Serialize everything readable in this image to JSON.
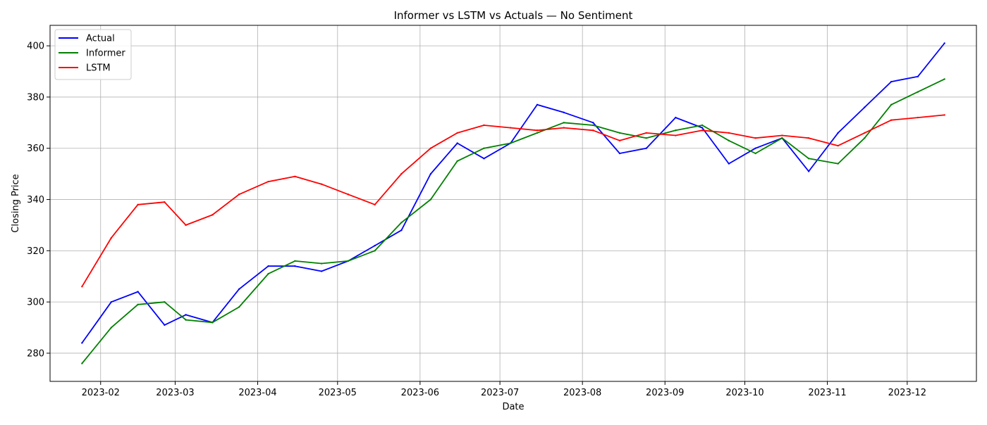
{
  "chart_data": {
    "type": "line",
    "title": "Informer vs LSTM vs Actuals — No Sentiment",
    "xlabel": "Date",
    "ylabel": "Closing Price",
    "x_tick_labels": [
      "2023-02",
      "2023-03",
      "2023-04",
      "2023-05",
      "2023-06",
      "2023-07",
      "2023-08",
      "2023-09",
      "2023-10",
      "2023-11",
      "2023-12"
    ],
    "x_tick_dates": [
      "2023-02-01",
      "2023-03-01",
      "2023-04-01",
      "2023-05-01",
      "2023-06-01",
      "2023-07-01",
      "2023-08-01",
      "2023-09-01",
      "2023-10-01",
      "2023-11-01",
      "2023-12-01"
    ],
    "xlim": [
      "2023-01-13",
      "2023-12-27"
    ],
    "y_ticks": [
      280,
      300,
      320,
      340,
      360,
      380,
      400
    ],
    "ylim": [
      269,
      408
    ],
    "grid": true,
    "legend_position": "top-left",
    "x": [
      "2023-01-25",
      "2023-02-05",
      "2023-02-15",
      "2023-02-25",
      "2023-03-05",
      "2023-03-15",
      "2023-03-25",
      "2023-04-05",
      "2023-04-15",
      "2023-04-25",
      "2023-05-05",
      "2023-05-15",
      "2023-05-25",
      "2023-06-05",
      "2023-06-15",
      "2023-06-25",
      "2023-07-05",
      "2023-07-15",
      "2023-07-25",
      "2023-08-05",
      "2023-08-15",
      "2023-08-25",
      "2023-09-05",
      "2023-09-15",
      "2023-09-25",
      "2023-10-05",
      "2023-10-15",
      "2023-10-25",
      "2023-11-05",
      "2023-11-15",
      "2023-11-25",
      "2023-12-05",
      "2023-12-15"
    ],
    "series": [
      {
        "name": "Actual",
        "color": "#0000ff",
        "values": [
          284,
          300,
          304,
          291,
          295,
          292,
          305,
          314,
          314,
          312,
          316,
          322,
          328,
          350,
          362,
          356,
          362,
          377,
          374,
          370,
          358,
          360,
          372,
          368,
          354,
          360,
          364,
          351,
          366,
          376,
          386,
          388,
          401
        ]
      },
      {
        "name": "Informer",
        "color": "#008000",
        "values": [
          276,
          290,
          299,
          300,
          293,
          292,
          298,
          311,
          316,
          315,
          316,
          320,
          331,
          340,
          355,
          360,
          362,
          366,
          370,
          369,
          366,
          364,
          367,
          369,
          363,
          358,
          364,
          356,
          354,
          364,
          377,
          382,
          387
        ]
      },
      {
        "name": "LSTM",
        "color": "#ff0000",
        "values": [
          306,
          325,
          338,
          339,
          330,
          334,
          342,
          347,
          349,
          346,
          342,
          338,
          350,
          360,
          366,
          369,
          368,
          367,
          368,
          367,
          363,
          366,
          365,
          367,
          366,
          364,
          365,
          364,
          361,
          366,
          371,
          372,
          373
        ]
      }
    ]
  }
}
